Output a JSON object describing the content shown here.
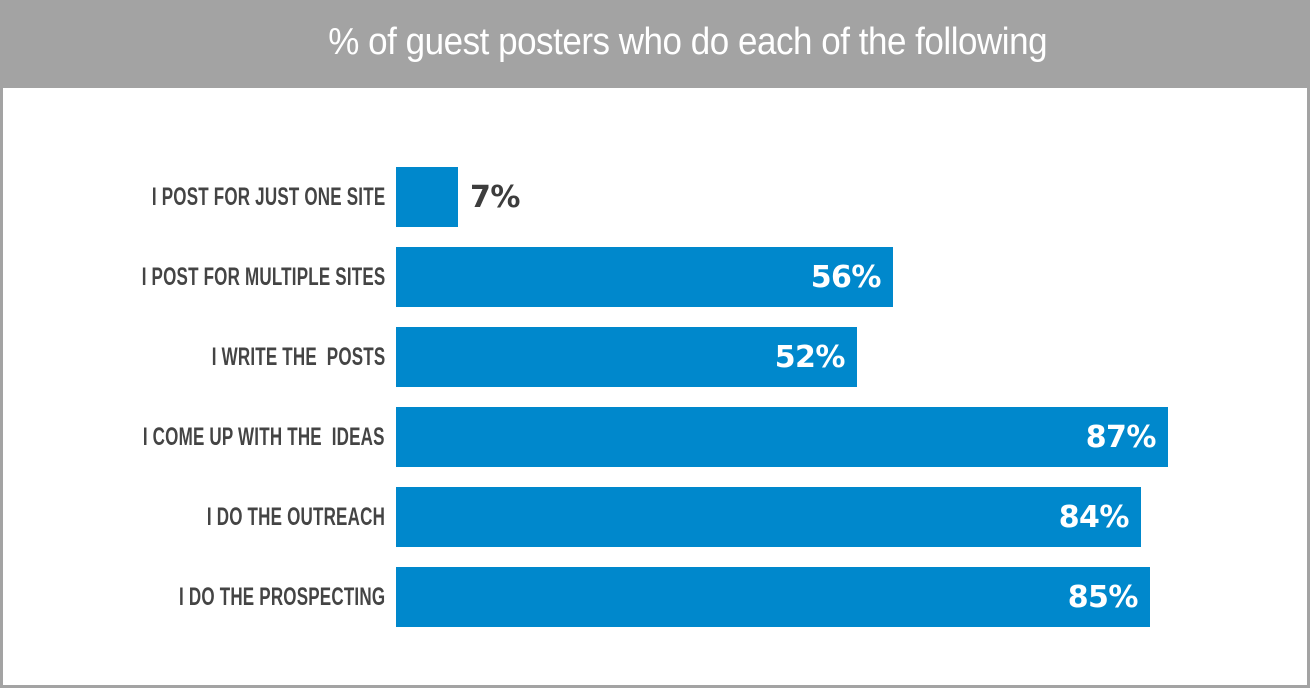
{
  "title": "% of guest posters who do each of the following",
  "colors": {
    "header_bg": "#a3a3a3",
    "bar": "#0088cc",
    "label_text": "#444444",
    "value_inside": "#ffffff",
    "value_outside": "#3d3d3d"
  },
  "bars": [
    {
      "label": "I POST FOR JUST ONE SITE",
      "value": 7,
      "value_label": "7%"
    },
    {
      "label": "I POST FOR MULTIPLE SITES",
      "value": 56,
      "value_label": "56%"
    },
    {
      "label": "I WRITE THE  POSTS",
      "value": 52,
      "value_label": "52%"
    },
    {
      "label": "I COME UP WITH THE  IDEAS",
      "value": 87,
      "value_label": "87%"
    },
    {
      "label": "I DO THE OUTREACH",
      "value": 84,
      "value_label": "84%"
    },
    {
      "label": "I DO THE PROSPECTING",
      "value": 85,
      "value_label": "85%"
    }
  ],
  "chart_data": {
    "type": "bar",
    "orientation": "horizontal",
    "title": "% of guest posters who do each of the following",
    "categories": [
      "I POST FOR JUST ONE SITE",
      "I POST FOR MULTIPLE SITES",
      "I WRITE THE  POSTS",
      "I COME UP WITH THE  IDEAS",
      "I DO THE OUTREACH",
      "I DO THE PROSPECTING"
    ],
    "values": [
      7,
      56,
      52,
      87,
      84,
      85
    ],
    "value_labels": [
      "7%",
      "56%",
      "52%",
      "87%",
      "84%",
      "85%"
    ],
    "xlabel": "",
    "ylabel": "",
    "xlim": [
      0,
      100
    ],
    "unit": "%",
    "grid": false,
    "legend": null
  }
}
